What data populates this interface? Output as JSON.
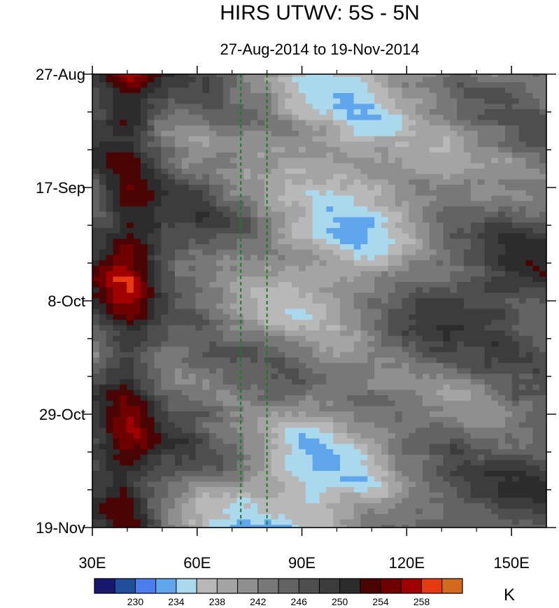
{
  "chart_data": {
    "type": "heatmap",
    "title": "HIRS UTWV: 5S - 5N",
    "subtitle": "27-Aug-2014 to 19-Nov-2014",
    "xaxis": {
      "range": [
        30,
        160
      ],
      "ticks": [
        30,
        60,
        90,
        120,
        150
      ],
      "tick_labels": [
        "30E",
        "60E",
        "90E",
        "120E",
        "150E"
      ]
    },
    "yaxis": {
      "range_days_from_start": [
        0,
        84
      ],
      "ticks": [
        "27-Aug",
        "17-Sep",
        "8-Oct",
        "29-Oct",
        "19-Nov"
      ]
    },
    "reference_lines_lon": [
      72.5,
      80
    ],
    "reference_line_color": "#1f7a1f",
    "colorbar": {
      "unit": "K",
      "labels": [
        "230",
        "234",
        "238",
        "242",
        "246",
        "250",
        "254",
        "258"
      ],
      "levels": [
        226,
        228,
        230,
        232,
        234,
        236,
        238,
        240,
        242,
        244,
        246,
        248,
        250,
        252,
        254,
        256,
        258,
        260,
        262
      ],
      "colors": [
        "#17176e",
        "#1f4f9a",
        "#4a7ef0",
        "#5fa6ec",
        "#aad8ec",
        "#b8b8b8",
        "#a4a4a4",
        "#8f8f8f",
        "#787878",
        "#636363",
        "#4e4e4e",
        "#3c3c3c",
        "#2c2c2c",
        "#4a0404",
        "#6e0000",
        "#a00000",
        "#e83a10",
        "#d2691e"
      ]
    }
  }
}
